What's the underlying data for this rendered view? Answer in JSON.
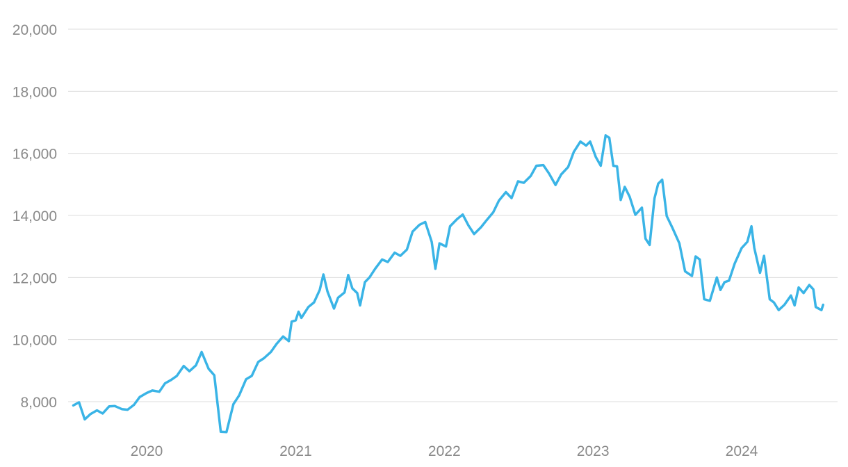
{
  "chart_data": {
    "type": "line",
    "title": "",
    "xlabel": "",
    "ylabel": "",
    "x_range": [
      "2019-07-05",
      "2024-07-19"
    ],
    "ylim": [
      7000,
      20800
    ],
    "grid": "horizontal",
    "legend": "none",
    "colors": {
      "line": "#3ab4e6",
      "grid": "#dcdcdc",
      "tick_text": "#8a8a8a"
    },
    "y_ticks": [
      {
        "value": 8000,
        "label": "8,000"
      },
      {
        "value": 10000,
        "label": "10,000"
      },
      {
        "value": 12000,
        "label": "12,000"
      },
      {
        "value": 14000,
        "label": "14,000"
      },
      {
        "value": 16000,
        "label": "16,000"
      },
      {
        "value": 18000,
        "label": "18,000"
      },
      {
        "value": 20000,
        "label": "20,000"
      }
    ],
    "x_ticks": [
      {
        "value": "2020-01-01",
        "label": "2020"
      },
      {
        "value": "2021-01-01",
        "label": "2021"
      },
      {
        "value": "2022-01-01",
        "label": "2022"
      },
      {
        "value": "2023-01-01",
        "label": "2023"
      },
      {
        "value": "2024-01-01",
        "label": "2024"
      }
    ],
    "series": [
      {
        "points": [
          [
            "2019-07-05",
            7880
          ],
          [
            "2019-07-19",
            7980
          ],
          [
            "2019-08-02",
            7430
          ],
          [
            "2019-08-16",
            7600
          ],
          [
            "2019-09-01",
            7720
          ],
          [
            "2019-09-15",
            7620
          ],
          [
            "2019-10-01",
            7850
          ],
          [
            "2019-10-15",
            7860
          ],
          [
            "2019-11-01",
            7760
          ],
          [
            "2019-11-15",
            7740
          ],
          [
            "2019-12-01",
            7900
          ],
          [
            "2019-12-15",
            8150
          ],
          [
            "2020-01-01",
            8280
          ],
          [
            "2020-01-15",
            8360
          ],
          [
            "2020-02-01",
            8320
          ],
          [
            "2020-02-15",
            8590
          ],
          [
            "2020-03-01",
            8700
          ],
          [
            "2020-03-15",
            8830
          ],
          [
            "2020-04-01",
            9150
          ],
          [
            "2020-04-15",
            8980
          ],
          [
            "2020-05-01",
            9170
          ],
          [
            "2020-05-15",
            9600
          ],
          [
            "2020-06-01",
            9060
          ],
          [
            "2020-06-15",
            8850
          ],
          [
            "2020-07-01",
            7030
          ],
          [
            "2020-07-15",
            7020
          ],
          [
            "2020-08-01",
            7920
          ],
          [
            "2020-08-15",
            8200
          ],
          [
            "2020-09-01",
            8720
          ],
          [
            "2020-09-15",
            8830
          ],
          [
            "2020-10-01",
            9280
          ],
          [
            "2020-10-15",
            9400
          ],
          [
            "2020-11-01",
            9600
          ],
          [
            "2020-11-15",
            9860
          ],
          [
            "2020-12-01",
            10100
          ],
          [
            "2020-12-15",
            9950
          ],
          [
            "2020-12-22",
            10580
          ],
          [
            "2021-01-01",
            10620
          ],
          [
            "2021-01-08",
            10900
          ],
          [
            "2021-01-15",
            10700
          ],
          [
            "2021-02-01",
            11050
          ],
          [
            "2021-02-15",
            11200
          ],
          [
            "2021-03-01",
            11600
          ],
          [
            "2021-03-10",
            12100
          ],
          [
            "2021-03-20",
            11550
          ],
          [
            "2021-04-05",
            11000
          ],
          [
            "2021-04-15",
            11350
          ],
          [
            "2021-05-01",
            11520
          ],
          [
            "2021-05-10",
            12080
          ],
          [
            "2021-05-20",
            11650
          ],
          [
            "2021-06-01",
            11500
          ],
          [
            "2021-06-08",
            11100
          ],
          [
            "2021-06-20",
            11850
          ],
          [
            "2021-07-01",
            12000
          ],
          [
            "2021-07-15",
            12280
          ],
          [
            "2021-08-01",
            12580
          ],
          [
            "2021-08-15",
            12500
          ],
          [
            "2021-09-01",
            12800
          ],
          [
            "2021-09-15",
            12700
          ],
          [
            "2021-10-01",
            12900
          ],
          [
            "2021-10-15",
            13480
          ],
          [
            "2021-11-01",
            13700
          ],
          [
            "2021-11-15",
            13790
          ],
          [
            "2021-12-01",
            13150
          ],
          [
            "2021-12-10",
            12280
          ],
          [
            "2021-12-20",
            13100
          ],
          [
            "2022-01-05",
            13000
          ],
          [
            "2022-01-15",
            13650
          ],
          [
            "2022-02-01",
            13880
          ],
          [
            "2022-02-15",
            14030
          ],
          [
            "2022-03-01",
            13680
          ],
          [
            "2022-03-15",
            13400
          ],
          [
            "2022-04-01",
            13620
          ],
          [
            "2022-04-15",
            13850
          ],
          [
            "2022-05-01",
            14100
          ],
          [
            "2022-05-15",
            14480
          ],
          [
            "2022-06-01",
            14750
          ],
          [
            "2022-06-15",
            14560
          ],
          [
            "2022-07-01",
            15100
          ],
          [
            "2022-07-15",
            15050
          ],
          [
            "2022-08-01",
            15270
          ],
          [
            "2022-08-15",
            15600
          ],
          [
            "2022-09-01",
            15620
          ],
          [
            "2022-09-15",
            15350
          ],
          [
            "2022-10-01",
            14980
          ],
          [
            "2022-10-15",
            15320
          ],
          [
            "2022-11-01",
            15560
          ],
          [
            "2022-11-15",
            16050
          ],
          [
            "2022-12-01",
            16380
          ],
          [
            "2022-12-15",
            16250
          ],
          [
            "2022-12-25",
            16380
          ],
          [
            "2023-01-08",
            15880
          ],
          [
            "2023-01-20",
            15600
          ],
          [
            "2023-02-01",
            16580
          ],
          [
            "2023-02-10",
            16500
          ],
          [
            "2023-02-20",
            15600
          ],
          [
            "2023-03-01",
            15580
          ],
          [
            "2023-03-10",
            14500
          ],
          [
            "2023-03-20",
            14920
          ],
          [
            "2023-04-01",
            14600
          ],
          [
            "2023-04-15",
            14020
          ],
          [
            "2023-05-01",
            14250
          ],
          [
            "2023-05-10",
            13250
          ],
          [
            "2023-05-20",
            13050
          ],
          [
            "2023-06-01",
            14550
          ],
          [
            "2023-06-10",
            15020
          ],
          [
            "2023-06-20",
            15150
          ],
          [
            "2023-07-01",
            13980
          ],
          [
            "2023-07-15",
            13600
          ],
          [
            "2023-08-01",
            13100
          ],
          [
            "2023-08-15",
            12200
          ],
          [
            "2023-09-01",
            12050
          ],
          [
            "2023-09-10",
            12680
          ],
          [
            "2023-09-20",
            12580
          ],
          [
            "2023-10-01",
            11300
          ],
          [
            "2023-10-15",
            11250
          ],
          [
            "2023-11-01",
            12000
          ],
          [
            "2023-11-10",
            11600
          ],
          [
            "2023-11-20",
            11850
          ],
          [
            "2023-12-01",
            11900
          ],
          [
            "2023-12-15",
            12450
          ],
          [
            "2024-01-01",
            12950
          ],
          [
            "2024-01-15",
            13150
          ],
          [
            "2024-01-25",
            13650
          ],
          [
            "2024-02-01",
            12950
          ],
          [
            "2024-02-15",
            12150
          ],
          [
            "2024-02-25",
            12700
          ],
          [
            "2024-03-10",
            11300
          ],
          [
            "2024-03-20",
            11200
          ],
          [
            "2024-04-01",
            10950
          ],
          [
            "2024-04-15",
            11120
          ],
          [
            "2024-05-01",
            11420
          ],
          [
            "2024-05-10",
            11100
          ],
          [
            "2024-05-20",
            11680
          ],
          [
            "2024-06-01",
            11500
          ],
          [
            "2024-06-15",
            11760
          ],
          [
            "2024-06-25",
            11620
          ],
          [
            "2024-07-01",
            11050
          ],
          [
            "2024-07-15",
            10950
          ],
          [
            "2024-07-19",
            11120
          ]
        ]
      }
    ]
  }
}
